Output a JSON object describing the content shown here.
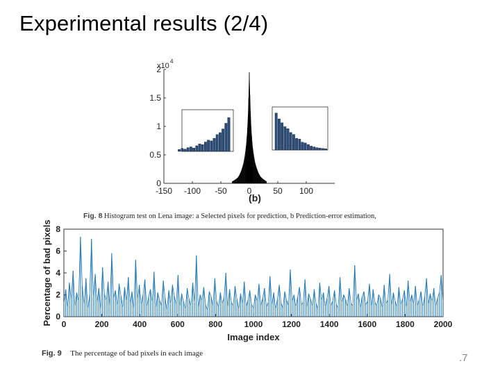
{
  "slide": {
    "title": "Experimental results (2/4)",
    "page_number": ".7"
  },
  "captions": {
    "fig8_label": "Fig. 8",
    "fig8_text": "Histogram test on Lena image: a Selected pixels for prediction, b Prediction-error estimation,",
    "fig9_label": "Fig. 9",
    "fig9_text": "The percentage of bad pixels in each image"
  },
  "chart_data": [
    {
      "type": "bar",
      "panel_label": "(b)",
      "x_range": [
        -150,
        150
      ],
      "y_range": [
        0,
        20000
      ],
      "y_multiplier_label": "x10",
      "y_multiplier_exponent": "4",
      "x_ticks": [
        "-150",
        "-100",
        "-50",
        "0",
        "50",
        "100"
      ],
      "y_ticks": [
        "0",
        "0.5",
        "1",
        "1.5",
        "2"
      ],
      "histogram_x": [
        -30,
        -25,
        -20,
        -18,
        -16,
        -14,
        -12,
        -10,
        -8,
        -6,
        -5,
        -4,
        -3,
        -2,
        -1,
        0,
        1,
        2,
        3,
        4,
        5,
        6,
        8,
        10,
        12,
        14,
        16,
        18,
        20,
        25,
        30
      ],
      "histogram_y": [
        300,
        600,
        1000,
        1300,
        1700,
        2200,
        2800,
        3500,
        4600,
        6000,
        7000,
        8200,
        9800,
        12000,
        15000,
        19500,
        15500,
        12500,
        10000,
        8400,
        7100,
        6100,
        4700,
        3600,
        2900,
        2300,
        1800,
        1400,
        1100,
        650,
        320
      ],
      "inset_left_values": [
        0.05,
        0.08,
        0.06,
        0.1,
        0.12,
        0.09,
        0.15,
        0.2,
        0.18,
        0.25,
        0.3,
        0.28,
        0.35,
        0.45,
        0.5,
        0.6,
        0.75,
        0.9
      ],
      "inset_right_values": [
        0.95,
        0.8,
        0.7,
        0.6,
        0.55,
        0.45,
        0.4,
        0.3,
        0.28,
        0.2,
        0.18,
        0.14,
        0.1,
        0.08,
        0.06,
        0.05,
        0.04,
        0.03
      ],
      "grid": false
    },
    {
      "type": "line",
      "xlabel": "Image index",
      "ylabel": "Percentage of bad pixels",
      "x_range": [
        0,
        2000
      ],
      "y_range": [
        0,
        8
      ],
      "x_ticks": [
        "0",
        "200",
        "400",
        "600",
        "800",
        "1000",
        "1200",
        "1400",
        "1600",
        "1800",
        "2000"
      ],
      "y_ticks": [
        "0",
        "2",
        "4",
        "6",
        "8"
      ],
      "series": [
        {
          "color": "#1f77b4",
          "values": [
            1.2,
            2.5,
            0.8,
            3.1,
            1.6,
            4.2,
            0.9,
            2.2,
            1.4,
            7.3,
            2.8,
            1.1,
            3.5,
            0.7,
            2.0,
            7.1,
            1.8,
            3.9,
            1.3,
            2.6,
            0.6,
            4.5,
            2.1,
            1.5,
            3.2,
            0.9,
            5.8,
            1.7,
            2.4,
            1.0,
            3.0,
            1.9,
            0.8,
            2.7,
            1.4,
            3.6,
            1.2,
            2.3,
            0.7,
            5.2,
            1.6,
            2.9,
            1.1,
            2.0,
            3.4,
            0.9,
            1.8,
            2.5,
            1.3,
            4.1,
            0.8,
            2.2,
            1.5,
            1.0,
            3.3,
            1.7,
            0.6,
            2.4,
            1.2,
            2.9,
            1.9,
            1.1,
            3.8,
            0.9,
            2.1,
            1.4,
            0.7,
            2.6,
            1.6,
            1.0,
            3.1,
            1.3,
            5.6,
            0.8,
            2.0,
            1.5,
            2.7,
            1.1,
            0.6,
            2.3,
            1.8,
            1.0,
            3.5,
            1.4,
            0.9,
            2.2,
            1.2,
            1.7,
            4.0,
            0.8,
            2.5,
            1.3,
            1.0,
            2.8,
            1.6,
            0.7,
            2.1,
            1.2,
            3.2,
            0.9,
            1.5,
            2.4,
            1.1,
            0.8,
            2.0,
            1.4,
            3.0,
            1.0,
            1.7,
            2.6,
            0.9,
            1.3,
            3.7,
            1.1,
            2.2,
            0.7,
            1.6,
            2.9,
            1.2,
            0.8,
            2.3,
            1.5,
            1.0,
            4.3,
            1.4,
            2.0,
            0.9,
            1.8,
            2.7,
            1.1,
            1.3,
            3.4,
            0.8,
            2.1,
            1.6,
            1.0,
            2.5,
            1.2,
            0.7,
            3.1,
            1.5,
            2.2,
            0.9,
            1.7,
            2.8,
            1.0,
            1.4,
            2.4,
            1.1,
            0.8,
            3.6,
            1.3,
            2.0,
            1.6,
            0.9,
            2.6,
            1.2,
            1.0,
            4.7,
            1.5,
            2.1,
            0.8,
            1.8,
            2.3,
            1.1,
            1.4,
            3.0,
            0.9,
            2.5,
            1.3,
            1.0,
            2.0,
            1.7,
            0.8,
            2.9,
            1.2,
            1.5,
            3.9,
            1.0,
            2.2,
            1.4,
            0.9,
            2.7,
            1.1,
            1.6,
            2.4,
            0.8,
            3.3,
            1.3,
            2.0,
            1.2,
            2.8,
            1.0,
            1.5,
            2.3,
            0.9,
            1.8,
            3.5,
            1.1,
            2.1,
            1.4,
            2.6,
            1.0,
            1.7,
            2.2,
            3.8,
            1.3
          ]
        }
      ],
      "grid": false
    }
  ]
}
